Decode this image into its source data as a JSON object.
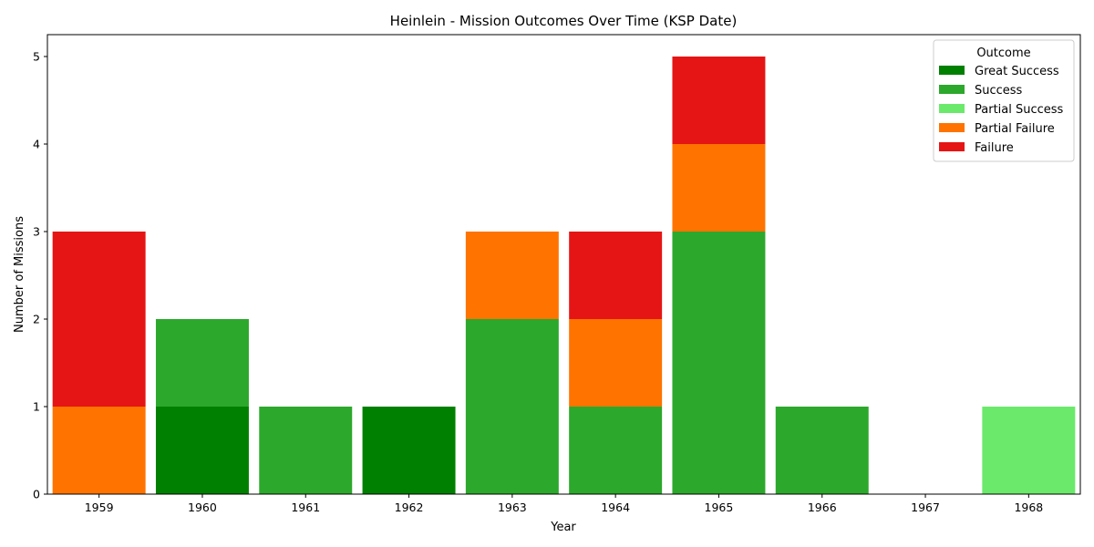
{
  "chart_data": {
    "type": "bar",
    "stacked": true,
    "title": "Heinlein - Mission Outcomes Over Time (KSP Date)",
    "xlabel": "Year",
    "ylabel": "Number of Missions",
    "ylim": [
      0,
      5.25
    ],
    "yticks": [
      0,
      1,
      2,
      3,
      4,
      5
    ],
    "categories": [
      "1959",
      "1960",
      "1961",
      "1962",
      "1963",
      "1964",
      "1965",
      "1966",
      "1967",
      "1968"
    ],
    "legend": {
      "title": "Outcome",
      "placement": "top-right"
    },
    "grid": false,
    "series": [
      {
        "name": "Great Success",
        "color": "#008000",
        "values": [
          0,
          1,
          0,
          1,
          0,
          0,
          0,
          0,
          0,
          0
        ]
      },
      {
        "name": "Success",
        "color": "#2ca82c",
        "values": [
          0,
          1,
          1,
          0,
          2,
          1,
          3,
          1,
          0,
          0
        ]
      },
      {
        "name": "Partial Success",
        "color": "#6ae96a",
        "values": [
          0,
          0,
          0,
          0,
          0,
          0,
          0,
          0,
          0,
          1
        ]
      },
      {
        "name": "Partial Failure",
        "color": "#ff7300",
        "values": [
          1,
          0,
          0,
          0,
          1,
          1,
          1,
          0,
          0,
          0
        ]
      },
      {
        "name": "Failure",
        "color": "#e51515",
        "values": [
          2,
          0,
          0,
          0,
          0,
          1,
          1,
          0,
          0,
          0
        ]
      }
    ]
  }
}
